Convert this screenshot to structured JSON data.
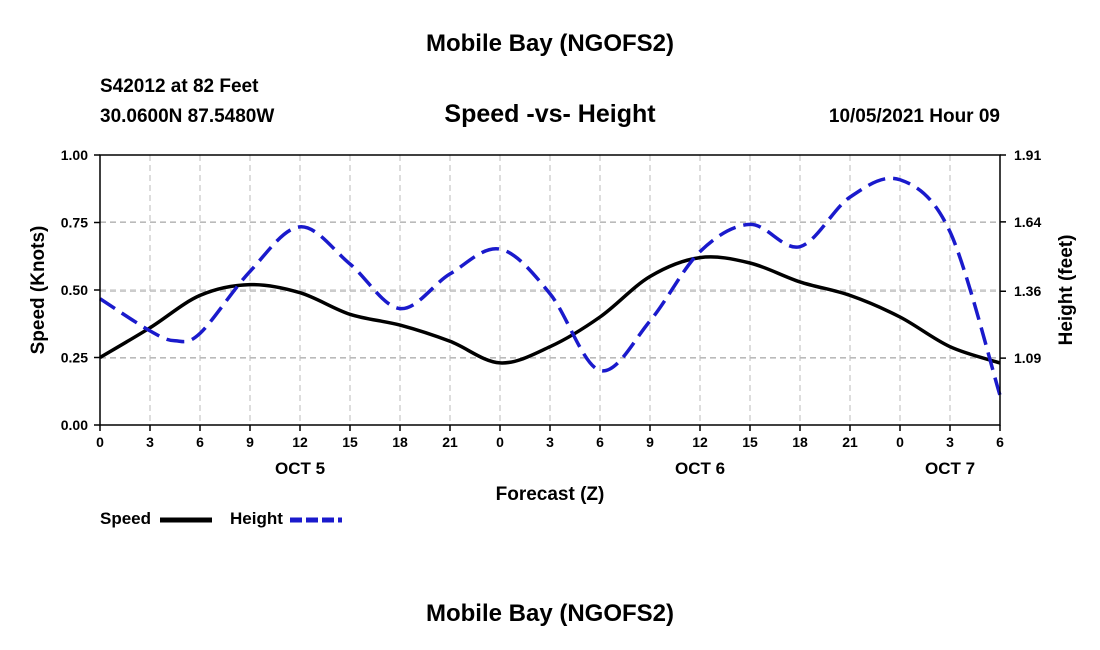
{
  "header": {
    "title": "Mobile Bay (NGOFS2)",
    "station": "S42012 at 82 Feet",
    "coords": "30.0600N  87.5480W",
    "chart_title": "Speed -vs- Height",
    "timestamp": "10/05/2021 Hour 09"
  },
  "footer": {
    "title": "Mobile Bay (NGOFS2)"
  },
  "legend": {
    "speed_label": "Speed",
    "height_label": "Height"
  },
  "colors": {
    "speed": "#000000",
    "height": "#1a1acc",
    "grid": "#bbbbbb"
  },
  "chart_data": {
    "type": "line",
    "title": "Speed -vs- Height",
    "xlabel": "Forecast (Z)",
    "ylabel": "Speed (Knots)",
    "y2label": "Height (feet)",
    "xlim": [
      0,
      54
    ],
    "ylim": [
      0,
      1
    ],
    "y2lim": [
      0.82,
      1.91
    ],
    "grid": true,
    "legend_position": "bottom-left",
    "x_ticks": [
      0,
      3,
      6,
      9,
      12,
      15,
      18,
      21,
      24,
      27,
      30,
      33,
      36,
      39,
      42,
      45,
      48,
      51,
      54
    ],
    "x_tick_labels": [
      "0",
      "3",
      "6",
      "9",
      "12",
      "15",
      "18",
      "21",
      "0",
      "3",
      "6",
      "9",
      "12",
      "15",
      "18",
      "21",
      "0",
      "3",
      "6"
    ],
    "day_labels": [
      {
        "x": 12,
        "label": "OCT 5"
      },
      {
        "x": 36,
        "label": "OCT 6"
      },
      {
        "x": 51,
        "label": "OCT 7"
      }
    ],
    "y_ticks": [
      0.0,
      0.25,
      0.5,
      0.75,
      1.0
    ],
    "y_tick_labels": [
      "0.00",
      "0.25",
      "0.50",
      "0.75",
      "1.00"
    ],
    "y2_ticks": [
      1.09,
      1.36,
      1.64,
      1.91
    ],
    "y2_tick_labels": [
      "1.09",
      "1.36",
      "1.64",
      "1.91"
    ],
    "series": [
      {
        "name": "Speed",
        "axis": "left",
        "style": "solid",
        "x": [
          0,
          3,
          6,
          9,
          12,
          15,
          18,
          21,
          24,
          27,
          30,
          33,
          36,
          39,
          42,
          45,
          48,
          51,
          54
        ],
        "values": [
          0.25,
          0.36,
          0.48,
          0.52,
          0.49,
          0.41,
          0.37,
          0.31,
          0.23,
          0.29,
          0.4,
          0.55,
          0.62,
          0.6,
          0.53,
          0.48,
          0.4,
          0.29,
          0.23
        ]
      },
      {
        "name": "Height",
        "axis": "right",
        "style": "dashed",
        "x": [
          0,
          3,
          4.5,
          6,
          9,
          12,
          15,
          18,
          21,
          24,
          27,
          30,
          33,
          36,
          39,
          42,
          45,
          48,
          51,
          54
        ],
        "values": [
          1.33,
          1.2,
          1.16,
          1.19,
          1.44,
          1.62,
          1.47,
          1.29,
          1.43,
          1.53,
          1.35,
          1.04,
          1.24,
          1.52,
          1.63,
          1.54,
          1.74,
          1.81,
          1.6,
          0.94
        ]
      }
    ]
  }
}
